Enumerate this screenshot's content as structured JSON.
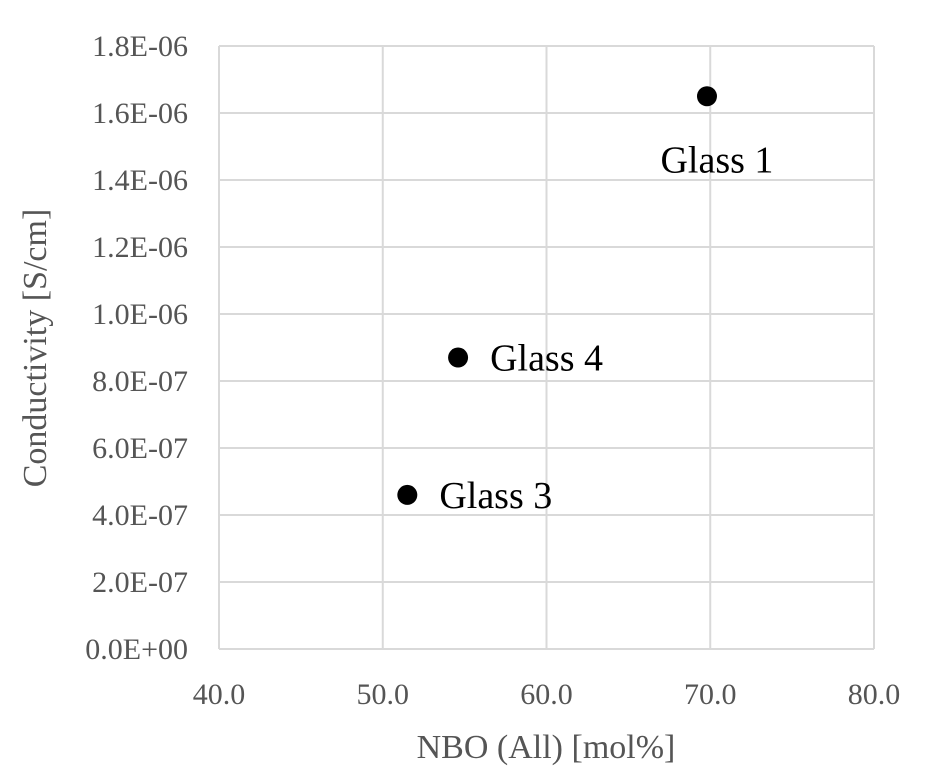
{
  "chart_data": {
    "type": "scatter",
    "title": "",
    "xlabel": "NBO (All) [mol%]",
    "ylabel": "Conductivity [S/cm]",
    "xlim": [
      40,
      80
    ],
    "ylim": [
      0,
      1.8e-06
    ],
    "x_ticks": [
      40,
      50,
      60,
      70,
      80
    ],
    "x_tick_labels": [
      "40.0",
      "50.0",
      "60.0",
      "70.0",
      "80.0"
    ],
    "y_ticks": [
      0,
      2e-07,
      4e-07,
      6e-07,
      8e-07,
      1e-06,
      1.2e-06,
      1.4e-06,
      1.6e-06,
      1.8e-06
    ],
    "y_tick_labels": [
      "0.0E+00",
      "2.0E-07",
      "4.0E-07",
      "6.0E-07",
      "8.0E-07",
      "1.0E-06",
      "1.2E-06",
      "1.4E-06",
      "1.6E-06",
      "1.8E-06"
    ],
    "grid": true,
    "legend": false,
    "marker_color": "#000000",
    "gridline_color": "#d9d9d9",
    "points": [
      {
        "label": "Glass 1",
        "x": 69.8,
        "y": 1.65e-06,
        "label_position": "below"
      },
      {
        "label": "Glass 4",
        "x": 54.6,
        "y": 8.7e-07,
        "label_position": "right"
      },
      {
        "label": "Glass 3",
        "x": 51.5,
        "y": 4.6e-07,
        "label_position": "right"
      }
    ]
  }
}
